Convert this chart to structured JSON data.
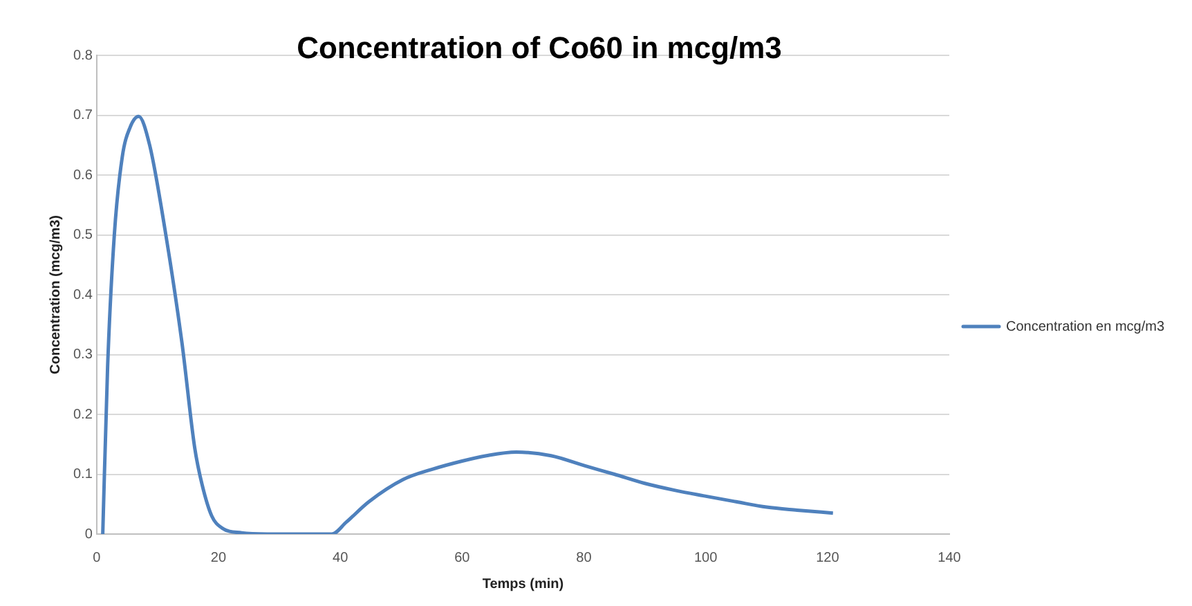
{
  "chart_data": {
    "type": "line",
    "title": "Concentration of Co60 in mcg/m3",
    "xlabel": "Temps (min)",
    "ylabel": "Concentration (mcg/m3)",
    "x": [
      1,
      1.8,
      2.9,
      4.2,
      5.5,
      6.9,
      8.7,
      11.2,
      14,
      16.1,
      17.3,
      18.9,
      20.6,
      23.8,
      28,
      33,
      38.6,
      41,
      44.7,
      50.3,
      55,
      60,
      64,
      68.9,
      74.6,
      80.2,
      85,
      89.9,
      95,
      99.6,
      105,
      110,
      115,
      120.9
    ],
    "series": [
      {
        "name": "Concentration en mcg/m3",
        "color": "#4f81bd",
        "values": [
          0,
          0.28,
          0.5,
          0.63,
          0.68,
          0.698,
          0.65,
          0.51,
          0.32,
          0.144,
          0.083,
          0.03,
          0.01,
          0.002,
          0,
          0,
          0,
          0.02,
          0.054,
          0.091,
          0.108,
          0.122,
          0.131,
          0.137,
          0.131,
          0.114,
          0.1,
          0.085,
          0.073,
          0.064,
          0.054,
          0.045,
          0.04,
          0.035
        ]
      }
    ],
    "xlim": [
      0,
      140
    ],
    "xticks": [
      0,
      20,
      40,
      60,
      80,
      100,
      120,
      140
    ],
    "ylim": [
      0,
      0.8
    ],
    "yticks": [
      0,
      0.1,
      0.2,
      0.3,
      0.4,
      0.5,
      0.6,
      0.7,
      0.8
    ],
    "grid": "y",
    "legend": "right",
    "marker": "none",
    "line_style": "solid"
  }
}
